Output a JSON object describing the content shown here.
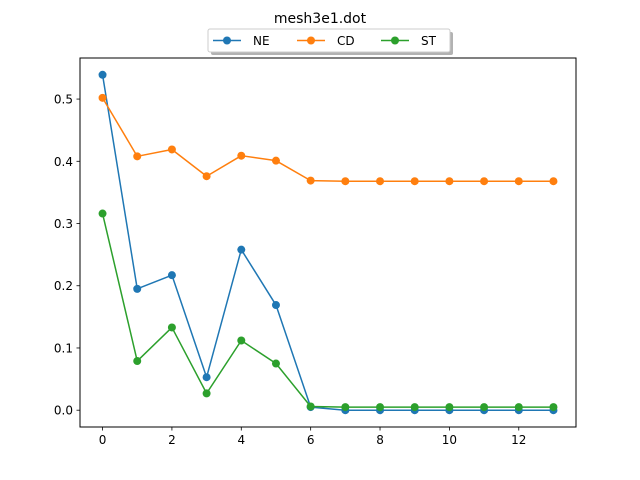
{
  "chart_data": {
    "type": "line",
    "title": "mesh3e1.dot",
    "xlabel": "",
    "ylabel": "",
    "x": [
      0,
      1,
      2,
      3,
      4,
      5,
      6,
      7,
      8,
      9,
      10,
      11,
      12,
      13
    ],
    "xlim": [
      -0.65,
      13.65
    ],
    "ylim": [
      -0.027,
      0.566
    ],
    "xticks": [
      0,
      2,
      4,
      6,
      8,
      10,
      12
    ],
    "yticks": [
      0.0,
      0.1,
      0.2,
      0.3,
      0.4,
      0.5
    ],
    "xtick_labels": [
      "0",
      "2",
      "4",
      "6",
      "8",
      "10",
      "12"
    ],
    "ytick_labels": [
      "0.0",
      "0.1",
      "0.2",
      "0.3",
      "0.4",
      "0.5"
    ],
    "grid": false,
    "legend_placement": "top-center",
    "series": [
      {
        "name": "NE",
        "color": "#1f77b4",
        "values": [
          0.539,
          0.195,
          0.217,
          0.053,
          0.258,
          0.169,
          0.005,
          0.0,
          0.0,
          0.0,
          0.0,
          0.0,
          0.0,
          0.0
        ]
      },
      {
        "name": "CD",
        "color": "#ff7f0e",
        "values": [
          0.502,
          0.408,
          0.419,
          0.376,
          0.409,
          0.401,
          0.369,
          0.368,
          0.368,
          0.368,
          0.368,
          0.368,
          0.368,
          0.368
        ]
      },
      {
        "name": "ST",
        "color": "#2ca02c",
        "values": [
          0.316,
          0.079,
          0.133,
          0.027,
          0.112,
          0.075,
          0.006,
          0.005,
          0.005,
          0.005,
          0.005,
          0.005,
          0.005,
          0.005
        ]
      }
    ]
  }
}
